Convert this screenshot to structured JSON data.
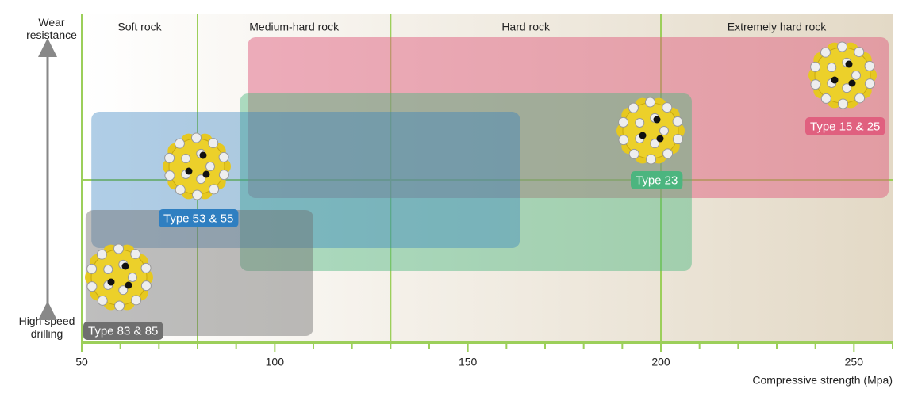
{
  "chart_data": {
    "type": "range",
    "zones": [
      {
        "label": "Soft rock",
        "range": [
          50,
          80
        ]
      },
      {
        "label": "Medium-hard rock",
        "range": [
          80,
          130
        ]
      },
      {
        "label": "Hard rock",
        "range": [
          130,
          200
        ]
      },
      {
        "label": "Extremely hard rock",
        "range": [
          200,
          260
        ]
      }
    ],
    "series": [
      {
        "name": "Type 15 & 25",
        "color": "#e0607f",
        "range": [
          93,
          259
        ]
      },
      {
        "name": "Type 23",
        "color": "#4cb57f",
        "range": [
          91,
          208
        ]
      },
      {
        "name": "Type 53 & 55",
        "color": "#2f7fc1",
        "range": [
          52.5,
          163.5
        ]
      },
      {
        "name": "Type 83 & 85",
        "color": "#6f6f6f",
        "range": [
          51,
          110
        ]
      }
    ],
    "xlim": [
      50,
      260
    ],
    "xticks": [
      50,
      100,
      150,
      200,
      250
    ],
    "xticks_minor": [
      60,
      70,
      80,
      90,
      110,
      120,
      130,
      140,
      160,
      170,
      180,
      190,
      210,
      220,
      230,
      240,
      260
    ],
    "xlabel": "Compressive strength (Mpa)",
    "y_label_top": "Wear resistance",
    "y_label_bottom": "High speed drilling"
  }
}
